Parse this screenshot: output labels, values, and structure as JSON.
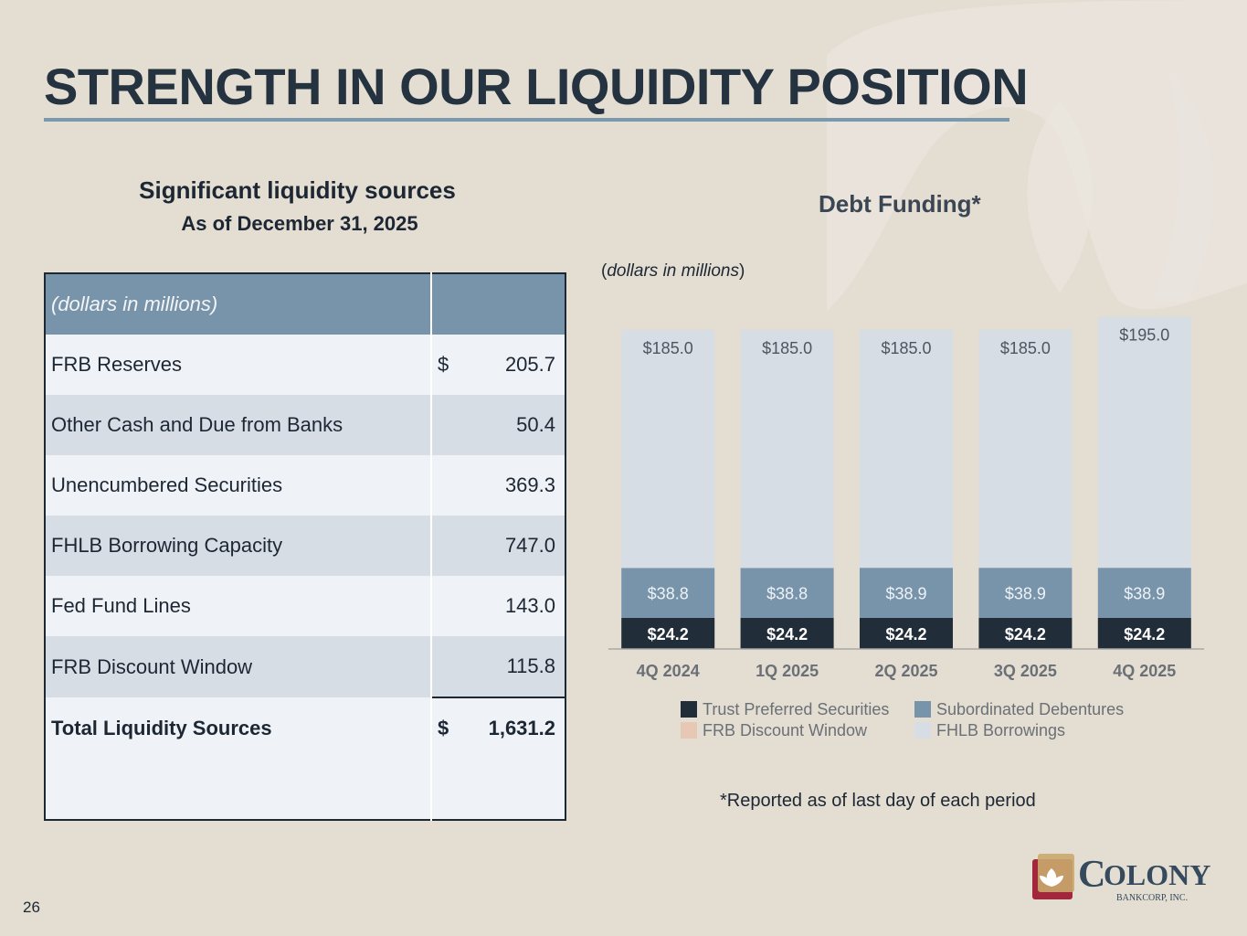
{
  "page": {
    "title": "STRENGTH IN OUR LIQUIDITY POSITION",
    "page_number": "26",
    "footnote": "*Reported as of last day of each period"
  },
  "table": {
    "heading": "Significant liquidity sources",
    "subheading": "As of December 31, 2025",
    "unit_label": "(dollars in millions)",
    "rows": [
      {
        "label": "FRB Reserves",
        "currency": "$",
        "value": "205.7"
      },
      {
        "label": "Other Cash and Due from Banks",
        "currency": "",
        "value": "50.4"
      },
      {
        "label": "Unencumbered Securities",
        "currency": "",
        "value": "369.3"
      },
      {
        "label": "FHLB Borrowing Capacity",
        "currency": "",
        "value": "747.0"
      },
      {
        "label": "Fed Fund Lines",
        "currency": "",
        "value": "143.0"
      },
      {
        "label": "FRB Discount Window",
        "currency": "",
        "value": "115.8"
      }
    ],
    "total": {
      "label": "Total Liquidity Sources",
      "currency": "$",
      "value": "1,631.2"
    }
  },
  "chart_header": {
    "title": "Debt Funding*",
    "unit_prefix": "(",
    "unit_italic": "dollars in millions",
    "unit_suffix": ")"
  },
  "chart_data": {
    "type": "bar",
    "stacked": true,
    "title": "Debt Funding*",
    "ylabel": "dollars in millions",
    "categories": [
      "4Q 2024",
      "1Q 2025",
      "2Q 2025",
      "3Q 2025",
      "4Q 2025"
    ],
    "series": [
      {
        "name": "Trust Preferred Securities",
        "color": "#212d39",
        "values": [
          24.2,
          24.2,
          24.2,
          24.2,
          24.2
        ],
        "labels": [
          "$24.2",
          "$24.2",
          "$24.2",
          "$24.2",
          "$24.2"
        ]
      },
      {
        "name": "Subordinated Debentures",
        "color": "#7894aa",
        "values": [
          38.8,
          38.8,
          38.9,
          38.9,
          38.9
        ],
        "labels": [
          "$38.8",
          "$38.8",
          "$38.9",
          "$38.9",
          "$38.9"
        ]
      },
      {
        "name": "FRB Discount Window",
        "color": "#e6c8b4",
        "values": [
          0,
          0,
          0,
          0,
          0
        ],
        "labels": [
          "",
          "",
          "",
          "",
          ""
        ]
      },
      {
        "name": "FHLB Borrowings",
        "color": "#d7dde5",
        "values": [
          185.0,
          185.0,
          185.0,
          185.0,
          195.0
        ],
        "labels": [
          "$185.0",
          "$185.0",
          "$185.0",
          "$185.0",
          "$195.0"
        ]
      }
    ],
    "ylim": [
      0,
      260
    ],
    "legend_position": "bottom"
  },
  "logo": {
    "name_part1": "C",
    "name_part2": "OLONY",
    "tagline": "BANKCORP, INC."
  }
}
